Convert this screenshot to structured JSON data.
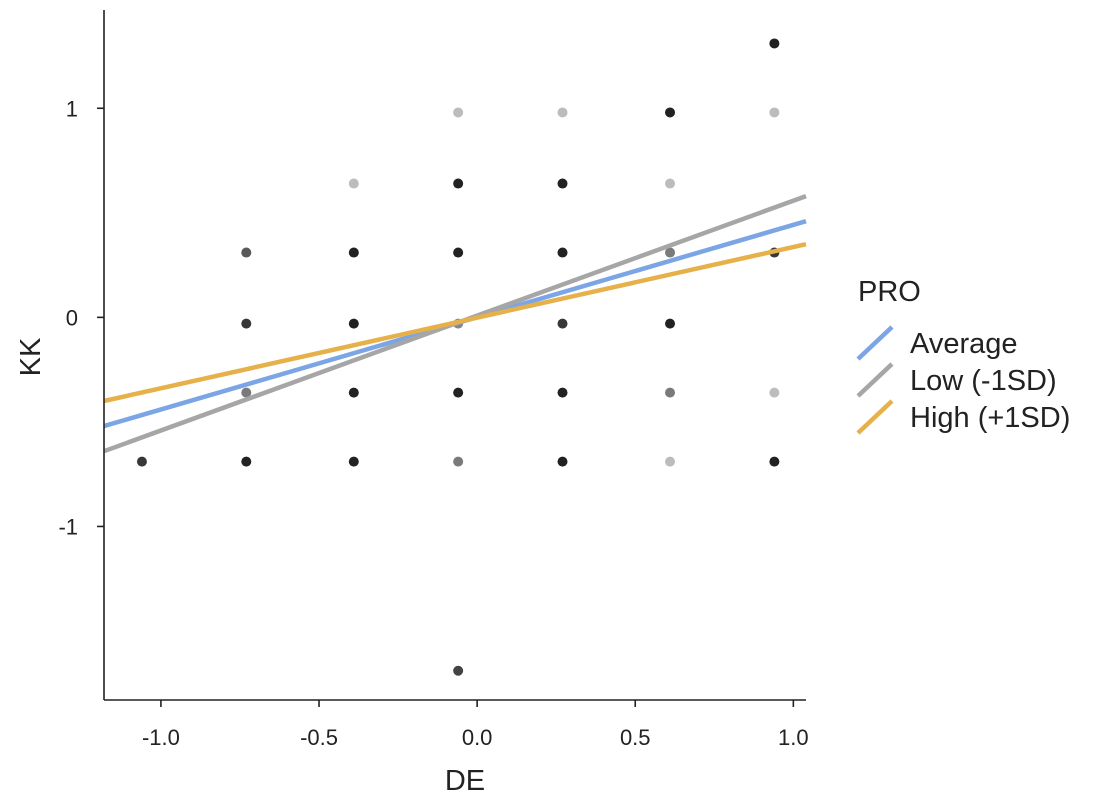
{
  "chart_data": {
    "type": "scatter",
    "xlabel": "DE",
    "ylabel": "KK",
    "xlim": [
      -1.18,
      1.04
    ],
    "ylim": [
      -1.83,
      1.47
    ],
    "x_ticks": [
      -1.0,
      -0.5,
      0.0,
      0.5,
      1.0
    ],
    "x_tick_labels": [
      "-1.0",
      "-0.5",
      "0.0",
      "0.5",
      "1.0"
    ],
    "y_ticks": [
      -1,
      0,
      1
    ],
    "y_tick_labels": [
      "-1",
      "0",
      "1"
    ],
    "grid": false,
    "points": [
      {
        "x": 0.94,
        "y": 1.31,
        "alpha": 1.0
      },
      {
        "x": -0.06,
        "y": 0.98,
        "alpha": 0.3
      },
      {
        "x": 0.27,
        "y": 0.98,
        "alpha": 0.3
      },
      {
        "x": 0.61,
        "y": 0.98,
        "alpha": 1.0
      },
      {
        "x": 0.94,
        "y": 0.98,
        "alpha": 0.3
      },
      {
        "x": -0.39,
        "y": 0.64,
        "alpha": 0.3
      },
      {
        "x": -0.06,
        "y": 0.64,
        "alpha": 1.0
      },
      {
        "x": 0.27,
        "y": 0.64,
        "alpha": 1.0
      },
      {
        "x": 0.61,
        "y": 0.64,
        "alpha": 0.3
      },
      {
        "x": -0.73,
        "y": 0.31,
        "alpha": 0.75
      },
      {
        "x": -0.39,
        "y": 0.31,
        "alpha": 1.0
      },
      {
        "x": -0.06,
        "y": 0.31,
        "alpha": 1.0
      },
      {
        "x": 0.27,
        "y": 0.31,
        "alpha": 1.0
      },
      {
        "x": 0.61,
        "y": 0.31,
        "alpha": 0.6
      },
      {
        "x": 0.94,
        "y": 0.31,
        "alpha": 0.9
      },
      {
        "x": -0.73,
        "y": -0.03,
        "alpha": 0.9
      },
      {
        "x": -0.39,
        "y": -0.03,
        "alpha": 1.0
      },
      {
        "x": -0.06,
        "y": -0.03,
        "alpha": 0.55
      },
      {
        "x": 0.27,
        "y": -0.03,
        "alpha": 0.9
      },
      {
        "x": 0.61,
        "y": -0.03,
        "alpha": 1.0
      },
      {
        "x": -0.73,
        "y": -0.36,
        "alpha": 0.6
      },
      {
        "x": -0.39,
        "y": -0.36,
        "alpha": 1.0
      },
      {
        "x": -0.06,
        "y": -0.36,
        "alpha": 1.0
      },
      {
        "x": 0.27,
        "y": -0.36,
        "alpha": 1.0
      },
      {
        "x": 0.61,
        "y": -0.36,
        "alpha": 0.6
      },
      {
        "x": 0.94,
        "y": -0.36,
        "alpha": 0.3
      },
      {
        "x": -1.06,
        "y": -0.69,
        "alpha": 0.9
      },
      {
        "x": -0.73,
        "y": -0.69,
        "alpha": 1.0
      },
      {
        "x": -0.39,
        "y": -0.69,
        "alpha": 1.0
      },
      {
        "x": -0.06,
        "y": -0.69,
        "alpha": 0.6
      },
      {
        "x": 0.27,
        "y": -0.69,
        "alpha": 1.0
      },
      {
        "x": 0.61,
        "y": -0.69,
        "alpha": 0.3
      },
      {
        "x": 0.94,
        "y": -0.69,
        "alpha": 1.0
      },
      {
        "x": -0.06,
        "y": -1.69,
        "alpha": 0.85
      }
    ],
    "series": [
      {
        "name": "Average",
        "type": "line",
        "color": "#7ca5e6",
        "x": [
          -1.18,
          1.04
        ],
        "y": [
          -0.52,
          0.46
        ]
      },
      {
        "name": "Low (-1SD)",
        "type": "line",
        "color": "#a6a6a6",
        "x": [
          -1.18,
          1.04
        ],
        "y": [
          -0.64,
          0.58
        ]
      },
      {
        "name": "High (+1SD)",
        "type": "line",
        "color": "#e6b14a",
        "x": [
          -1.18,
          1.04
        ],
        "y": [
          -0.4,
          0.35
        ]
      }
    ],
    "legend": {
      "title": "PRO",
      "placement": "right",
      "entries": [
        "Average",
        "Low (-1SD)",
        "High (+1SD)"
      ]
    },
    "point_color": "#222222"
  }
}
